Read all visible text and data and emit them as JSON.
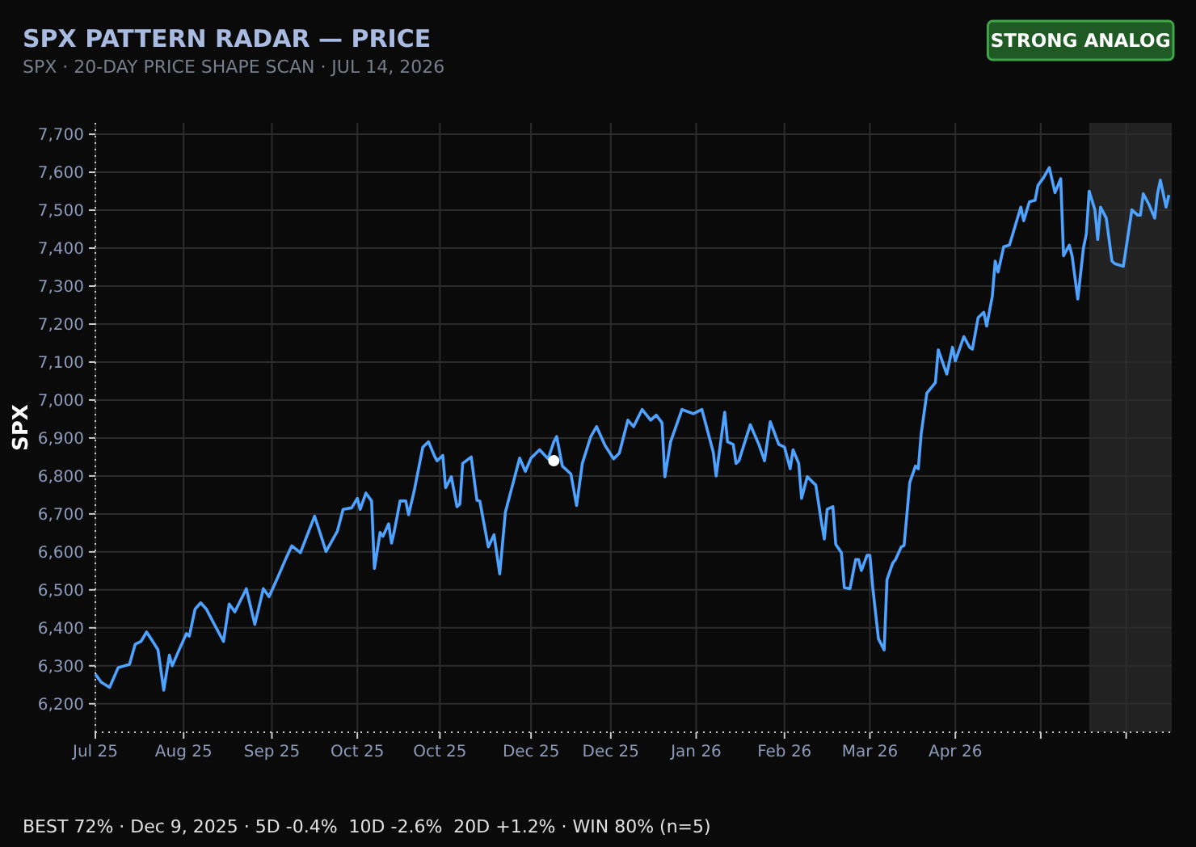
{
  "chart_data": {
    "type": "line",
    "title": "SPX PATTERN RADAR — PRICE",
    "subtitle": "SPX · 20-DAY PRICE SHAPE SCAN · JUL 14, 2026",
    "ylabel": "SPX",
    "annotations": [
      "STRONG ANALOG",
      "BEST 72% · Dec 9, 2025 · 5D -0.4%  10D -2.6%  20D +1.2% · WIN 80% (n=5)"
    ],
    "xlim": [
      "2025-07-01",
      "2026-07-14"
    ],
    "ylim": [
      6125,
      7730
    ],
    "xticks": [
      {
        "value": "2025-07-01",
        "label": "Jul 25"
      },
      {
        "value": "2025-08-01",
        "label": "Aug 25"
      },
      {
        "value": "2025-09-01",
        "label": "Sep 25"
      },
      {
        "value": "2025-10-01",
        "label": "Oct 25"
      },
      {
        "value": "2025-10-30",
        "label": "Oct 25"
      },
      {
        "value": "2025-12-01",
        "label": "Dec 25"
      },
      {
        "value": "2025-12-29",
        "label": "Dec 25"
      },
      {
        "value": "2026-01-28",
        "label": "Jan 26"
      },
      {
        "value": "2026-02-28",
        "label": "Feb 26"
      },
      {
        "value": "2026-03-30",
        "label": "Mar 26"
      },
      {
        "value": "2026-04-29",
        "label": "Apr 26"
      },
      {
        "value": "2026-05-29",
        "label": null
      },
      {
        "value": "2026-06-28",
        "label": null
      }
    ],
    "yticks": [
      {
        "value": 6200,
        "label": "6,200"
      },
      {
        "value": 6300,
        "label": "6,300"
      },
      {
        "value": 6400,
        "label": "6,400"
      },
      {
        "value": 6500,
        "label": "6,500"
      },
      {
        "value": 6600,
        "label": "6,600"
      },
      {
        "value": 6700,
        "label": "6,700"
      },
      {
        "value": 6800,
        "label": "6,800"
      },
      {
        "value": 6900,
        "label": "6,900"
      },
      {
        "value": 7000,
        "label": "7,000"
      },
      {
        "value": 7100,
        "label": "7,100"
      },
      {
        "value": 7200,
        "label": "7,200"
      },
      {
        "value": 7300,
        "label": "7,300"
      },
      {
        "value": 7400,
        "label": "7,400"
      },
      {
        "value": 7500,
        "label": "7,500"
      },
      {
        "value": 7600,
        "label": "7,600"
      },
      {
        "value": 7700,
        "label": "7,700"
      }
    ],
    "grid": true,
    "bands": [
      {
        "axis": "x",
        "from": "2026-06-15",
        "to": "2026-07-14",
        "color": "#222222"
      }
    ],
    "series": [
      {
        "type": "line",
        "color": "#4da3ff",
        "x": [
          "2025-07-01",
          "2025-07-03",
          "2025-07-06",
          "2025-07-09",
          "2025-07-13",
          "2025-07-15",
          "2025-07-17",
          "2025-07-19",
          "2025-07-21",
          "2025-07-23",
          "2025-07-25",
          "2025-07-27",
          "2025-07-28",
          "2025-07-30",
          "2025-08-02",
          "2025-08-03",
          "2025-08-05",
          "2025-08-07",
          "2025-08-09",
          "2025-08-12",
          "2025-08-15",
          "2025-08-17",
          "2025-08-19",
          "2025-08-23",
          "2025-08-26",
          "2025-08-29",
          "2025-08-31",
          "2025-09-03",
          "2025-09-06",
          "2025-09-08",
          "2025-09-11",
          "2025-09-16",
          "2025-09-18",
          "2025-09-20",
          "2025-09-24",
          "2025-09-26",
          "2025-09-29",
          "2025-10-01",
          "2025-10-02",
          "2025-10-04",
          "2025-10-06",
          "2025-10-07",
          "2025-10-09",
          "2025-10-10",
          "2025-10-12",
          "2025-10-13",
          "2025-10-14",
          "2025-10-16",
          "2025-10-18",
          "2025-10-19",
          "2025-10-21",
          "2025-10-24",
          "2025-10-26",
          "2025-10-28",
          "2025-10-29",
          "2025-10-31",
          "2025-11-01",
          "2025-11-03",
          "2025-11-05",
          "2025-11-06",
          "2025-11-07",
          "2025-11-10",
          "2025-11-12",
          "2025-11-13",
          "2025-11-16",
          "2025-11-18",
          "2025-11-20",
          "2025-11-22",
          "2025-11-25",
          "2025-11-27",
          "2025-11-29",
          "2025-12-01",
          "2025-12-04",
          "2025-12-07",
          "2025-12-09",
          "2025-12-10",
          "2025-12-12",
          "2025-12-15",
          "2025-12-17",
          "2025-12-19",
          "2025-12-22",
          "2025-12-24",
          "2025-12-27",
          "2025-12-30",
          "2026-01-01",
          "2026-01-04",
          "2026-01-06",
          "2026-01-09",
          "2026-01-12",
          "2026-01-14",
          "2026-01-16",
          "2026-01-17",
          "2026-01-19",
          "2026-01-23",
          "2026-01-27",
          "2026-01-30",
          "2026-02-03",
          "2026-02-04",
          "2026-02-07",
          "2026-02-08",
          "2026-02-10",
          "2026-02-11",
          "2026-02-12",
          "2026-02-16",
          "2026-02-19",
          "2026-02-21",
          "2026-02-23",
          "2026-02-26",
          "2026-02-28",
          "2026-03-02",
          "2026-03-03",
          "2026-03-05",
          "2026-03-06",
          "2026-03-08",
          "2026-03-10",
          "2026-03-11",
          "2026-03-13",
          "2026-03-14",
          "2026-03-15",
          "2026-03-17",
          "2026-03-18",
          "2026-03-20",
          "2026-03-21",
          "2026-03-23",
          "2026-03-25",
          "2026-03-26",
          "2026-03-27",
          "2026-03-29",
          "2026-03-30",
          "2026-03-31",
          "2026-04-02",
          "2026-04-04",
          "2026-04-05",
          "2026-04-07",
          "2026-04-08",
          "2026-04-10",
          "2026-04-11",
          "2026-04-13",
          "2026-04-15",
          "2026-04-16",
          "2026-04-17",
          "2026-04-19",
          "2026-04-22",
          "2026-04-23",
          "2026-04-26",
          "2026-04-28",
          "2026-04-29",
          "2026-05-02",
          "2026-05-04",
          "2026-05-05",
          "2026-05-07",
          "2026-05-09",
          "2026-05-10",
          "2026-05-12",
          "2026-05-13",
          "2026-05-14",
          "2026-05-16",
          "2026-05-18",
          "2026-05-20",
          "2026-05-22",
          "2026-05-23",
          "2026-05-25",
          "2026-05-27",
          "2026-05-28",
          "2026-05-30",
          "2026-06-01",
          "2026-06-03",
          "2026-06-05",
          "2026-06-06",
          "2026-06-08",
          "2026-06-09",
          "2026-06-11",
          "2026-06-13",
          "2026-06-14",
          "2026-06-15",
          "2026-06-17",
          "2026-06-18",
          "2026-06-19",
          "2026-06-21",
          "2026-06-23",
          "2026-06-24",
          "2026-06-27",
          "2026-06-29",
          "2026-06-30",
          "2026-07-02",
          "2026-07-03",
          "2026-07-04",
          "2026-07-06",
          "2026-07-08",
          "2026-07-09",
          "2026-07-10",
          "2026-07-12",
          "2026-07-13"
        ],
        "values": [
          6278,
          6257,
          6243,
          6295,
          6304,
          6357,
          6364,
          6389,
          6366,
          6342,
          6236,
          6328,
          6300,
          6335,
          6385,
          6378,
          6449,
          6466,
          6449,
          6406,
          6364,
          6463,
          6442,
          6503,
          6409,
          6503,
          6482,
          6532,
          6584,
          6616,
          6598,
          6694,
          6648,
          6601,
          6655,
          6712,
          6716,
          6741,
          6712,
          6755,
          6734,
          6556,
          6651,
          6641,
          6674,
          6623,
          6655,
          6734,
          6734,
          6698,
          6762,
          6876,
          6890,
          6854,
          6840,
          6854,
          6769,
          6798,
          6719,
          6726,
          6833,
          6850,
          6736,
          6734,
          6613,
          6645,
          6542,
          6705,
          6790,
          6847,
          6812,
          6847,
          6869,
          6845,
          6890,
          6904,
          6826,
          6805,
          6722,
          6833,
          6904,
          6930,
          6880,
          6845,
          6860,
          6947,
          6930,
          6975,
          6947,
          6960,
          6940,
          6798,
          6890,
          6975,
          6964,
          6975,
          6862,
          6800,
          6968,
          6890,
          6883,
          6833,
          6840,
          6935,
          6883,
          6840,
          6943,
          6883,
          6876,
          6819,
          6869,
          6833,
          6741,
          6798,
          6783,
          6776,
          6677,
          6634,
          6712,
          6719,
          6620,
          6598,
          6506,
          6503,
          6580,
          6580,
          6551,
          6591,
          6591,
          6506,
          6371,
          6342,
          6527,
          6570,
          6580,
          6613,
          6617,
          6783,
          6826,
          6819,
          6911,
          7018,
          7046,
          7132,
          7068,
          7139,
          7103,
          7167,
          7139,
          7134,
          7217,
          7231,
          7195,
          7274,
          7366,
          7337,
          7404,
          7408,
          7458,
          7508,
          7472,
          7522,
          7526,
          7565,
          7586,
          7612,
          7546,
          7583,
          7380,
          7408,
          7380,
          7266,
          7401,
          7437,
          7550,
          7501,
          7423,
          7508,
          7479,
          7366,
          7359,
          7352,
          7451,
          7501,
          7487,
          7487,
          7543,
          7515,
          7479,
          7543,
          7579,
          7508,
          7540
        ]
      },
      {
        "type": "scatter",
        "color": "#ffffff",
        "x": [
          "2025-12-09"
        ],
        "values": [
          6840
        ],
        "marker": "circle"
      }
    ]
  }
}
